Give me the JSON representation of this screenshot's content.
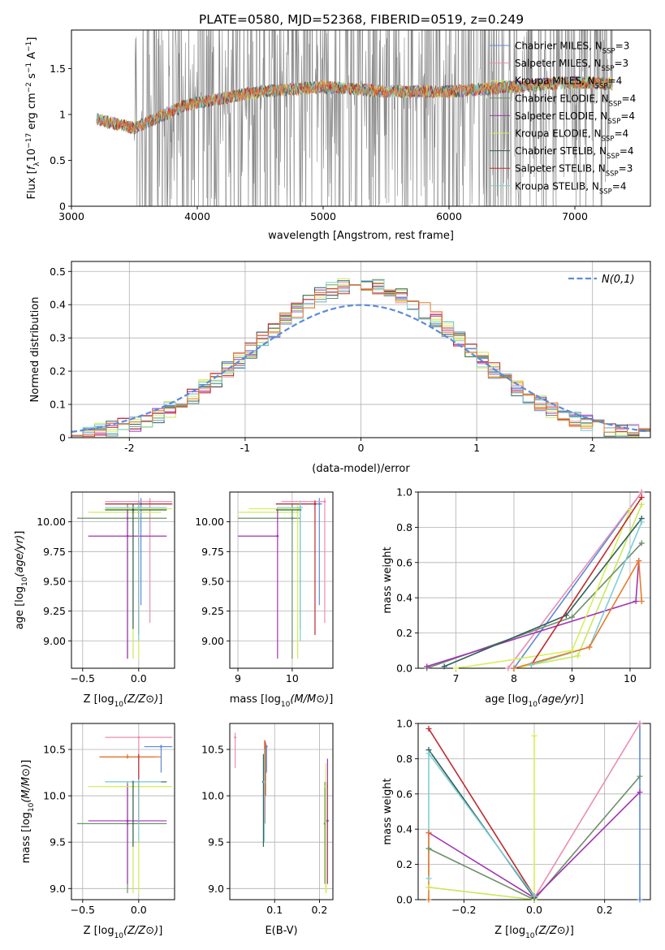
{
  "figure": {
    "title": "PLATE=0580, MJD=52368, FIBERID=0519, z=0.249",
    "colors": {
      "chabrier_miles": "#5b8bd9",
      "salpeter_miles": "#e98fb2",
      "kroupa_miles": "#c9e85a",
      "chabrier_elodie": "#6e8f6a",
      "salpeter_elodie": "#a133b5",
      "kroupa_elodie": "#d7ef58",
      "chabrier_stelib": "#2f5f5a",
      "salpeter_stelib": "#c0282e",
      "kroupa_stelib": "#7ecfd6",
      "orange": "#e87a2a",
      "data_gray": "#888888",
      "normal_curve": "#5b8bd9"
    }
  },
  "chart_data": [
    {
      "id": "spectrum",
      "type": "line",
      "title": "PLATE=0580, MJD=52368, FIBERID=0519, z=0.249",
      "xlabel": "wavelength [Angstrom, rest frame]",
      "ylabel": "Flux [f_λ 10^-17 erg cm^-2 s^-1 A^-1]",
      "xlim": [
        3000,
        7600
      ],
      "ylim": [
        0,
        1.92
      ],
      "xticks": [
        3000,
        4000,
        5000,
        6000,
        7000
      ],
      "yticks": [
        0.0,
        0.5,
        1.0,
        1.5
      ],
      "grid": false,
      "legend_position": "top-right",
      "legend": [
        {
          "label": "Chabrier MILES, N",
          "sub": "SSP",
          "suffix": "=3",
          "color": "chabrier_miles"
        },
        {
          "label": "Salpeter MILES, N",
          "sub": "SSP",
          "suffix": "=3",
          "color": "salpeter_miles"
        },
        {
          "label": "Kroupa MILES, N",
          "sub": "SSP",
          "suffix": "=4",
          "color": "kroupa_miles"
        },
        {
          "label": "Chabrier ELODIE, N",
          "sub": "SSP",
          "suffix": "=4",
          "color": "chabrier_elodie"
        },
        {
          "label": "Salpeter ELODIE, N",
          "sub": "SSP",
          "suffix": "=4",
          "color": "salpeter_elodie"
        },
        {
          "label": "Kroupa ELODIE, N",
          "sub": "SSP",
          "suffix": "=4",
          "color": "kroupa_elodie"
        },
        {
          "label": "Chabrier STELIB, N",
          "sub": "SSP",
          "suffix": "=4",
          "color": "chabrier_stelib"
        },
        {
          "label": "Salpeter STELIB, N",
          "sub": "SSP",
          "suffix": "=3",
          "color": "salpeter_stelib"
        },
        {
          "label": "Kroupa STELIB, N",
          "sub": "SSP",
          "suffix": "=4",
          "color": "kroupa_stelib"
        }
      ],
      "data_range": [
        3200,
        7300
      ],
      "noisy_from": 3500,
      "model_trend": [
        [
          3200,
          0.95
        ],
        [
          3500,
          0.85
        ],
        [
          3900,
          1.1
        ],
        [
          4500,
          1.25
        ],
        [
          5000,
          1.3
        ],
        [
          5500,
          1.25
        ],
        [
          6000,
          1.25
        ],
        [
          6500,
          1.3
        ],
        [
          7000,
          1.35
        ],
        [
          7300,
          1.33
        ]
      ]
    },
    {
      "id": "residuals",
      "type": "step",
      "xlabel": "(data-model)/error",
      "ylabel": "Normed distribution",
      "xlim": [
        -2.5,
        2.5
      ],
      "ylim": [
        0,
        0.53
      ],
      "xticks": [
        -2,
        -1,
        0,
        1,
        2
      ],
      "yticks": [
        0.0,
        0.1,
        0.2,
        0.3,
        0.4,
        0.5
      ],
      "grid": true,
      "legend_position": "top-right",
      "normal_curve_label": "N(0,1)",
      "bin_width": 0.1
    },
    {
      "id": "age_vs_Z",
      "type": "errorbar",
      "xlabel": "Z [log10(Z/Z⊙)]",
      "ylabel": "age  [log10(age/yr)]",
      "xlim": [
        -0.6,
        0.32
      ],
      "ylim": [
        8.77,
        10.25
      ],
      "xticks": [
        -0.5,
        0.0
      ],
      "xticklabels": [
        "−0.5",
        "0.0"
      ],
      "yticks": [
        9.0,
        9.25,
        9.5,
        9.75,
        10.0
      ],
      "yticklabels": [
        "9.00",
        "9.25",
        "9.50",
        "9.75",
        "10.00"
      ],
      "grid": true,
      "points": [
        {
          "x": 0.02,
          "y": 10.15,
          "x0": -0.3,
          "x1": 0.3,
          "y0": 9.3,
          "y1": 10.2,
          "color": "chabrier_miles"
        },
        {
          "x": 0.1,
          "y": 10.17,
          "x0": -0.3,
          "x1": 0.3,
          "y0": 9.15,
          "y1": 10.2,
          "color": "salpeter_miles"
        },
        {
          "x": -0.05,
          "y": 10.08,
          "x0": -0.45,
          "x1": 0.2,
          "y0": 8.85,
          "y1": 10.15,
          "color": "kroupa_miles"
        },
        {
          "x": -0.1,
          "y": 10.03,
          "x0": -0.55,
          "x1": 0.25,
          "y0": 8.85,
          "y1": 10.15,
          "color": "chabrier_elodie"
        },
        {
          "x": -0.1,
          "y": 9.88,
          "x0": -0.45,
          "x1": 0.25,
          "y0": 8.85,
          "y1": 10.12,
          "color": "salpeter_elodie"
        },
        {
          "x": 0.0,
          "y": 10.11,
          "x0": -0.3,
          "x1": 0.3,
          "y0": 8.85,
          "y1": 10.15,
          "color": "kroupa_elodie"
        },
        {
          "x": -0.05,
          "y": 10.1,
          "x0": -0.3,
          "x1": 0.25,
          "y0": 9.1,
          "y1": 10.15,
          "color": "chabrier_stelib"
        },
        {
          "x": 0.0,
          "y": 10.15,
          "x0": -0.3,
          "x1": 0.3,
          "y0": 9.05,
          "y1": 10.18,
          "color": "salpeter_stelib"
        },
        {
          "x": 0.0,
          "y": 10.12,
          "x0": -0.3,
          "x1": 0.25,
          "y0": 9.0,
          "y1": 10.18,
          "color": "kroupa_stelib"
        }
      ]
    },
    {
      "id": "age_vs_mass",
      "type": "errorbar",
      "xlabel": "mass [log10(M/M⊙)]",
      "ylabel": "",
      "xlim": [
        8.85,
        10.75
      ],
      "ylim": [
        8.77,
        10.25
      ],
      "xticks": [
        9,
        10
      ],
      "xticklabels": [
        "9",
        "10"
      ],
      "yticks": [
        9.0,
        9.25,
        9.5,
        9.75,
        10.0
      ],
      "yticklabels": [
        "9.00",
        "9.25",
        "9.50",
        "9.75",
        "10.00"
      ],
      "grid": true,
      "points": [
        {
          "x": 10.5,
          "y": 10.15,
          "x0": 9.7,
          "x1": 10.55,
          "y0": 9.3,
          "y1": 10.2,
          "color": "chabrier_miles"
        },
        {
          "x": 10.6,
          "y": 10.17,
          "x0": 9.8,
          "x1": 10.62,
          "y0": 9.15,
          "y1": 10.2,
          "color": "salpeter_miles"
        },
        {
          "x": 10.1,
          "y": 10.08,
          "x0": 9.0,
          "x1": 10.1,
          "y0": 8.85,
          "y1": 10.15,
          "color": "kroupa_miles"
        },
        {
          "x": 10.0,
          "y": 10.03,
          "x0": 9.0,
          "x1": 10.15,
          "y0": 8.85,
          "y1": 10.15,
          "color": "chabrier_elodie"
        },
        {
          "x": 9.73,
          "y": 9.88,
          "x0": 9.0,
          "x1": 9.75,
          "y0": 8.85,
          "y1": 10.12,
          "color": "salpeter_elodie"
        },
        {
          "x": 10.1,
          "y": 10.11,
          "x0": 9.2,
          "x1": 10.15,
          "y0": 8.85,
          "y1": 10.15,
          "color": "kroupa_elodie"
        },
        {
          "x": 10.15,
          "y": 10.1,
          "x0": 9.7,
          "x1": 10.15,
          "y0": 9.1,
          "y1": 10.15,
          "color": "chabrier_stelib"
        },
        {
          "x": 10.42,
          "y": 10.15,
          "x0": 9.7,
          "x1": 10.45,
          "y0": 9.05,
          "y1": 10.18,
          "color": "salpeter_stelib"
        },
        {
          "x": 10.15,
          "y": 10.12,
          "x0": 9.72,
          "x1": 10.2,
          "y0": 9.0,
          "y1": 10.18,
          "color": "kroupa_stelib"
        }
      ]
    },
    {
      "id": "massweight_vs_age",
      "type": "line",
      "xlabel": "age  [log10(age/yr)]",
      "ylabel": "mass weight",
      "xlim": [
        6.35,
        10.35
      ],
      "ylim": [
        0,
        1.0
      ],
      "xticks": [
        7,
        8,
        9,
        10
      ],
      "xticklabels": [
        "7",
        "8",
        "9",
        "10"
      ],
      "yticks": [
        0.0,
        0.2,
        0.4,
        0.6,
        0.8,
        1.0
      ],
      "yticklabels": [
        "0.0",
        "0.2",
        "0.4",
        "0.6",
        "0.8",
        "1.0"
      ],
      "grid": true,
      "series": [
        {
          "color": "chabrier_miles",
          "x": [
            8.0,
            10.2
          ],
          "y": [
            0.0,
            1.0
          ]
        },
        {
          "color": "salpeter_miles",
          "x": [
            7.9,
            10.2
          ],
          "y": [
            0.0,
            1.0
          ]
        },
        {
          "color": "kroupa_miles",
          "x": [
            8.0,
            9.1,
            10.2
          ],
          "y": [
            0.0,
            0.07,
            0.93
          ]
        },
        {
          "color": "chabrier_elodie",
          "x": [
            6.5,
            9.0,
            10.2
          ],
          "y": [
            0.0,
            0.29,
            0.71
          ]
        },
        {
          "color": "salpeter_elodie",
          "x": [
            6.5,
            10.1,
            10.15
          ],
          "y": [
            0.01,
            0.38,
            0.61
          ]
        },
        {
          "color": "kroupa_elodie",
          "x": [
            7.0,
            9.0,
            10.0
          ],
          "y": [
            0.0,
            0.1,
            0.9
          ]
        },
        {
          "color": "chabrier_stelib",
          "x": [
            6.8,
            8.9,
            10.2
          ],
          "y": [
            0.01,
            0.3,
            0.85
          ]
        },
        {
          "color": "salpeter_stelib",
          "x": [
            8.3,
            10.2
          ],
          "y": [
            0.02,
            0.97
          ]
        },
        {
          "color": "kroupa_stelib",
          "x": [
            8.3,
            9.3,
            10.2
          ],
          "y": [
            0.02,
            0.12,
            0.83
          ]
        },
        {
          "color": "orange",
          "x": [
            8.0,
            9.3,
            10.15,
            10.2
          ],
          "y": [
            0.0,
            0.12,
            0.61,
            0.38
          ]
        }
      ]
    },
    {
      "id": "mass_vs_Z",
      "type": "errorbar",
      "xlabel": "Z [log10(Z/Z⊙)]",
      "ylabel": "mass [log10(M/M⊙)]",
      "xlim": [
        -0.6,
        0.32
      ],
      "ylim": [
        8.88,
        10.78
      ],
      "xticks": [
        -0.5,
        0.0
      ],
      "xticklabels": [
        "−0.5",
        "0.0"
      ],
      "yticks": [
        9.0,
        9.5,
        10.0,
        10.5
      ],
      "yticklabels": [
        "9.0",
        "9.5",
        "10.0",
        "10.5"
      ],
      "grid": true,
      "points": [
        {
          "x": 0.2,
          "y": 10.53,
          "x0": 0.05,
          "x1": 0.3,
          "y0": 10.25,
          "y1": 10.55,
          "color": "chabrier_miles"
        },
        {
          "x": 0.0,
          "y": 10.63,
          "x0": -0.3,
          "x1": 0.3,
          "y0": 9.95,
          "y1": 10.65,
          "color": "salpeter_miles"
        },
        {
          "x": -0.05,
          "y": 10.1,
          "x0": -0.45,
          "x1": 0.28,
          "y0": 8.95,
          "y1": 10.15,
          "color": "kroupa_miles"
        },
        {
          "x": -0.1,
          "y": 9.7,
          "x0": -0.55,
          "x1": 0.25,
          "y0": 8.95,
          "y1": 10.15,
          "color": "chabrier_elodie"
        },
        {
          "x": -0.1,
          "y": 9.73,
          "x0": -0.45,
          "x1": 0.25,
          "y0": 9.05,
          "y1": 10.12,
          "color": "salpeter_elodie"
        },
        {
          "x": 0.0,
          "y": 10.1,
          "x0": -0.3,
          "x1": 0.3,
          "y0": 8.95,
          "y1": 10.15,
          "color": "kroupa_elodie"
        },
        {
          "x": -0.05,
          "y": 10.15,
          "x0": -0.3,
          "x1": 0.25,
          "y0": 9.45,
          "y1": 10.15,
          "color": "chabrier_stelib"
        },
        {
          "x": 0.0,
          "y": 10.42,
          "x0": -0.35,
          "x1": 0.15,
          "y0": 9.7,
          "y1": 10.45,
          "color": "salpeter_stelib"
        },
        {
          "x": 0.0,
          "y": 10.15,
          "x0": -0.3,
          "x1": 0.2,
          "y0": 9.5,
          "y1": 10.18,
          "color": "kroupa_stelib"
        },
        {
          "x": -0.1,
          "y": 10.42,
          "x0": -0.35,
          "x1": 0.2,
          "y0": 10.4,
          "y1": 10.45,
          "color": "orange"
        }
      ]
    },
    {
      "id": "mass_vs_ebv",
      "type": "errorbar",
      "xlabel": "E(B-V)",
      "ylabel": "",
      "xlim": [
        0.0,
        0.23
      ],
      "ylim": [
        8.88,
        10.78
      ],
      "xticks": [
        0.1,
        0.2
      ],
      "xticklabels": [
        "0.1",
        "0.2"
      ],
      "yticks": [
        9.0,
        9.5,
        10.0,
        10.5
      ],
      "yticklabels": [
        "9.0",
        "9.5",
        "10.0",
        "10.5"
      ],
      "grid": true,
      "points": [
        {
          "x": 0.082,
          "y": 10.53,
          "y0": 10.25,
          "y1": 10.55,
          "color": "chabrier_miles"
        },
        {
          "x": 0.012,
          "y": 10.63,
          "y0": 10.3,
          "y1": 10.68,
          "color": "salpeter_miles"
        },
        {
          "x": 0.215,
          "y": 10.1,
          "y0": 8.95,
          "y1": 10.15,
          "color": "kroupa_miles"
        },
        {
          "x": 0.212,
          "y": 9.7,
          "y0": 9.05,
          "y1": 10.15,
          "color": "chabrier_elodie"
        },
        {
          "x": 0.218,
          "y": 9.73,
          "y0": 9.05,
          "y1": 10.4,
          "color": "salpeter_elodie"
        },
        {
          "x": 0.214,
          "y": 10.1,
          "y0": 8.95,
          "y1": 10.35,
          "color": "kroupa_elodie"
        },
        {
          "x": 0.075,
          "y": 10.15,
          "y0": 9.45,
          "y1": 10.45,
          "color": "chabrier_stelib"
        },
        {
          "x": 0.078,
          "y": 10.42,
          "y0": 9.7,
          "y1": 10.6,
          "color": "salpeter_stelib"
        },
        {
          "x": 0.077,
          "y": 10.15,
          "y0": 9.5,
          "y1": 10.5,
          "color": "kroupa_stelib"
        },
        {
          "x": 0.08,
          "y": 10.42,
          "y0": 10.0,
          "y1": 10.58,
          "color": "orange"
        }
      ]
    },
    {
      "id": "massweight_vs_Z",
      "type": "line",
      "xlabel": "Z [log10(Z/Z⊙)]",
      "ylabel": "mass weight",
      "xlim": [
        -0.33,
        0.33
      ],
      "ylim": [
        0,
        1.0
      ],
      "xticks": [
        -0.2,
        0.0,
        0.2
      ],
      "xticklabels": [
        "−0.2",
        "0.0",
        "0.2"
      ],
      "yticks": [
        0.0,
        0.2,
        0.4,
        0.6,
        0.8,
        1.0
      ],
      "yticklabels": [
        "0.0",
        "0.2",
        "0.4",
        "0.6",
        "0.8",
        "1.0"
      ],
      "grid": true,
      "series": [
        {
          "color": "chabrier_miles",
          "x": [
            0.3,
            0.3
          ],
          "y": [
            0.0,
            1.0
          ]
        },
        {
          "color": "salpeter_miles",
          "x": [
            0.0,
            0.3
          ],
          "y": [
            0.01,
            1.0
          ]
        },
        {
          "color": "kroupa_miles",
          "x": [
            -0.3,
            0.0
          ],
          "y": [
            0.07,
            0.0
          ]
        },
        {
          "color": "chabrier_elodie",
          "x": [
            -0.3,
            0.0,
            0.3
          ],
          "y": [
            0.29,
            0.0,
            0.7
          ]
        },
        {
          "color": "salpeter_elodie",
          "x": [
            -0.3,
            0.0,
            0.3
          ],
          "y": [
            0.38,
            0.01,
            0.61
          ]
        },
        {
          "color": "kroupa_elodie",
          "x": [
            0.0,
            0.0
          ],
          "y": [
            0.0,
            0.93
          ]
        },
        {
          "color": "chabrier_stelib",
          "x": [
            -0.3,
            0.0
          ],
          "y": [
            0.85,
            0.01
          ]
        },
        {
          "color": "salpeter_stelib",
          "x": [
            -0.3,
            0.0
          ],
          "y": [
            0.97,
            0.02
          ]
        },
        {
          "color": "kroupa_stelib",
          "x": [
            -0.3,
            -0.3,
            0.0
          ],
          "y": [
            0.12,
            0.83,
            0.02
          ]
        },
        {
          "color": "orange",
          "x": [
            -0.3,
            -0.3
          ],
          "y": [
            0.0,
            0.38
          ]
        }
      ]
    }
  ]
}
